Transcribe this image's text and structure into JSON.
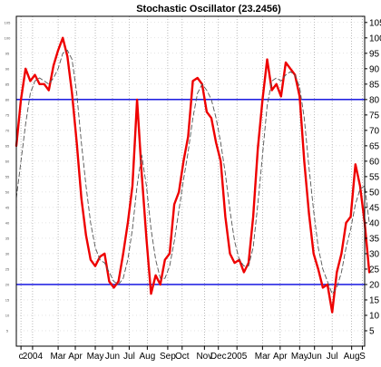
{
  "chart_data": {
    "type": "line",
    "title": "Stochastic Oscillator (23.2456)",
    "xlabel": "",
    "ylabel": "",
    "ylim": [
      0,
      107
    ],
    "y_ticks_right": [
      5,
      10,
      15,
      20,
      25,
      30,
      35,
      40,
      45,
      50,
      55,
      60,
      65,
      70,
      75,
      80,
      85,
      90,
      95,
      100,
      105
    ],
    "y_ticks_left": [
      "5",
      "10",
      "15",
      "20",
      "25",
      "30",
      "35",
      "40",
      "45",
      "50",
      "55",
      "60",
      "65",
      "70",
      "75",
      "80",
      "85",
      "90",
      "95",
      "100",
      "105"
    ],
    "x_tick_labels": [
      "c",
      "2004",
      "Mar",
      "Apr",
      "May",
      "Jun",
      "Jul",
      "Aug",
      "Sep",
      "Oct",
      "Nov",
      "Dec",
      "2005",
      "Mar",
      "Apr",
      "May",
      "Jun",
      "Jul",
      "Aug",
      "S"
    ],
    "x_tick_pos": [
      1,
      3.5,
      9,
      12.7,
      17,
      20.7,
      24.3,
      28.2,
      32.6,
      35.7,
      40.5,
      43.5,
      47.5,
      53,
      56.8,
      61,
      64.2,
      68,
      72.2,
      74.5
    ],
    "xlim": [
      0,
      75
    ],
    "grid": "vertical-dotted",
    "reference_lines": [
      {
        "value": 80,
        "color": "#0000dd"
      },
      {
        "value": 20,
        "color": "#0000dd"
      }
    ],
    "series": [
      {
        "color": "#ee0000",
        "style": "solid",
        "points": [
          [
            0,
            65
          ],
          [
            1,
            80
          ],
          [
            2,
            90
          ],
          [
            3,
            86
          ],
          [
            4,
            88
          ],
          [
            5,
            85
          ],
          [
            6,
            85
          ],
          [
            7,
            83
          ],
          [
            8,
            91
          ],
          [
            9,
            96
          ],
          [
            10,
            100
          ],
          [
            11,
            94
          ],
          [
            12,
            82
          ],
          [
            13,
            66
          ],
          [
            14,
            48
          ],
          [
            15,
            36
          ],
          [
            16,
            28
          ],
          [
            17,
            26
          ],
          [
            18,
            29
          ],
          [
            19,
            30
          ],
          [
            20,
            21
          ],
          [
            21,
            19
          ],
          [
            22,
            21
          ],
          [
            23,
            30
          ],
          [
            24,
            40
          ],
          [
            25,
            52
          ],
          [
            25.5,
            66
          ],
          [
            26,
            80
          ],
          [
            27,
            56
          ],
          [
            28,
            35
          ],
          [
            29,
            17
          ],
          [
            30,
            23
          ],
          [
            31,
            20
          ],
          [
            32,
            28
          ],
          [
            33,
            30
          ],
          [
            34,
            46
          ],
          [
            35,
            50
          ],
          [
            36,
            60
          ],
          [
            37,
            68
          ],
          [
            38,
            86
          ],
          [
            39,
            87
          ],
          [
            40,
            85
          ],
          [
            41,
            76
          ],
          [
            42,
            74
          ],
          [
            43,
            66
          ],
          [
            44,
            60
          ],
          [
            45,
            42
          ],
          [
            46,
            30
          ],
          [
            47,
            27
          ],
          [
            48,
            28
          ],
          [
            49,
            24
          ],
          [
            50,
            27
          ],
          [
            51,
            42
          ],
          [
            52,
            64
          ],
          [
            53,
            80
          ],
          [
            54,
            93
          ],
          [
            55,
            83
          ],
          [
            56,
            85
          ],
          [
            57,
            81
          ],
          [
            58,
            92
          ],
          [
            59,
            90
          ],
          [
            60,
            88
          ],
          [
            61,
            81
          ],
          [
            62,
            60
          ],
          [
            63,
            43
          ],
          [
            64,
            30
          ],
          [
            65,
            25
          ],
          [
            66,
            19
          ],
          [
            67,
            20
          ],
          [
            68,
            11
          ],
          [
            69,
            24
          ],
          [
            70,
            30
          ],
          [
            71,
            40
          ],
          [
            72,
            42
          ],
          [
            73,
            59
          ],
          [
            74,
            52
          ],
          [
            75,
            40
          ],
          [
            76,
            24
          ]
        ]
      },
      {
        "color": "#555555",
        "style": "dashed",
        "points": [
          [
            0,
            48
          ],
          [
            1,
            60
          ],
          [
            2,
            72
          ],
          [
            3,
            82
          ],
          [
            4,
            86
          ],
          [
            5,
            87
          ],
          [
            6,
            86
          ],
          [
            7,
            85
          ],
          [
            8,
            87
          ],
          [
            9,
            90
          ],
          [
            10,
            95
          ],
          [
            11,
            96
          ],
          [
            12,
            93
          ],
          [
            13,
            82
          ],
          [
            14,
            66
          ],
          [
            15,
            52
          ],
          [
            16,
            40
          ],
          [
            17,
            32
          ],
          [
            18,
            28
          ],
          [
            19,
            27
          ],
          [
            20,
            24
          ],
          [
            21,
            21
          ],
          [
            22,
            20
          ],
          [
            23,
            22
          ],
          [
            24,
            28
          ],
          [
            25,
            38
          ],
          [
            26,
            52
          ],
          [
            27,
            62
          ],
          [
            28,
            52
          ],
          [
            29,
            38
          ],
          [
            30,
            28
          ],
          [
            31,
            22
          ],
          [
            32,
            22
          ],
          [
            33,
            26
          ],
          [
            34,
            34
          ],
          [
            35,
            44
          ],
          [
            36,
            54
          ],
          [
            37,
            63
          ],
          [
            38,
            74
          ],
          [
            39,
            82
          ],
          [
            40,
            85
          ],
          [
            41,
            83
          ],
          [
            42,
            80
          ],
          [
            43,
            74
          ],
          [
            44,
            66
          ],
          [
            45,
            56
          ],
          [
            46,
            44
          ],
          [
            47,
            34
          ],
          [
            48,
            28
          ],
          [
            49,
            26
          ],
          [
            50,
            26
          ],
          [
            51,
            32
          ],
          [
            52,
            46
          ],
          [
            53,
            62
          ],
          [
            54,
            78
          ],
          [
            55,
            86
          ],
          [
            56,
            87
          ],
          [
            57,
            86
          ],
          [
            58,
            88
          ],
          [
            59,
            89
          ],
          [
            60,
            88
          ],
          [
            61,
            84
          ],
          [
            62,
            74
          ],
          [
            63,
            58
          ],
          [
            64,
            44
          ],
          [
            65,
            32
          ],
          [
            66,
            25
          ],
          [
            67,
            21
          ],
          [
            68,
            17
          ],
          [
            69,
            19
          ],
          [
            70,
            24
          ],
          [
            71,
            32
          ],
          [
            72,
            38
          ],
          [
            73,
            46
          ],
          [
            74,
            51
          ],
          [
            75,
            52
          ],
          [
            76,
            40
          ]
        ]
      }
    ]
  }
}
